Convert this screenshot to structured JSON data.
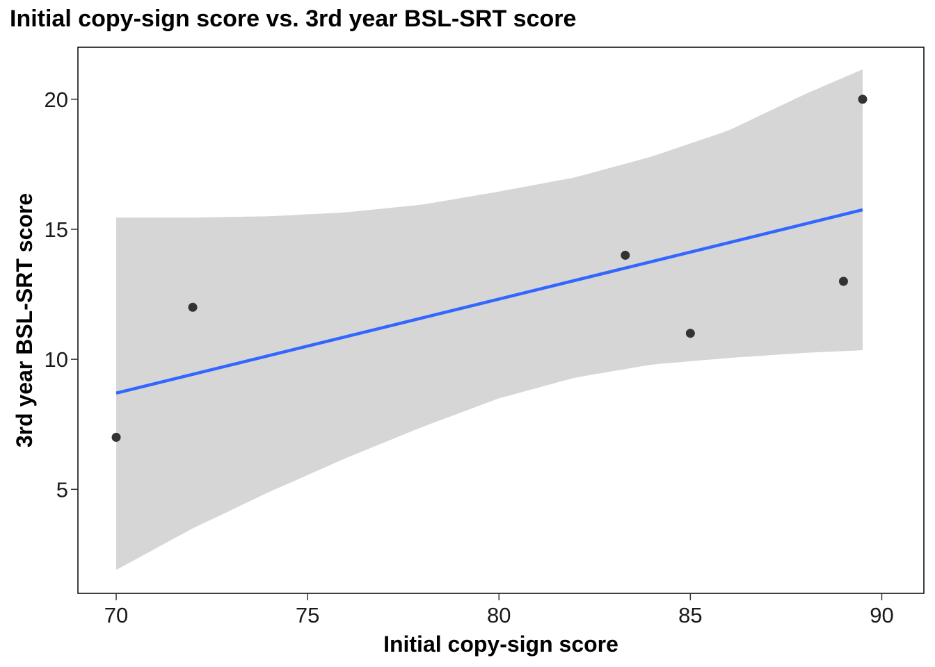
{
  "chart_data": {
    "type": "scatter",
    "title": "Initial copy-sign score vs. 3rd year BSL-SRT score",
    "xlabel": "Initial copy-sign score",
    "ylabel": "3rd year BSL-SRT score",
    "xlim": [
      69,
      91.1
    ],
    "ylim": [
      1.0,
      22.0
    ],
    "xticks": [
      70,
      75,
      80,
      85,
      90
    ],
    "yticks": [
      5,
      10,
      15,
      20
    ],
    "grid": false,
    "points": [
      {
        "x": 70,
        "y": 7
      },
      {
        "x": 72,
        "y": 12
      },
      {
        "x": 83.3,
        "y": 14
      },
      {
        "x": 85,
        "y": 11
      },
      {
        "x": 89,
        "y": 13
      },
      {
        "x": 89.5,
        "y": 20
      }
    ],
    "fit_line": {
      "x": [
        70,
        89.5
      ],
      "y": [
        8.7,
        15.75
      ],
      "color": "#3366ff"
    },
    "confidence_band": {
      "color": "#d6d6d6",
      "x": [
        70,
        72,
        74,
        76,
        78,
        80,
        82,
        84,
        86,
        88,
        89.5
      ],
      "lower": [
        1.9,
        3.5,
        4.9,
        6.2,
        7.4,
        8.5,
        9.3,
        9.8,
        10.05,
        10.25,
        10.35
      ],
      "upper": [
        15.45,
        15.45,
        15.5,
        15.65,
        15.95,
        16.45,
        17.0,
        17.8,
        18.8,
        20.2,
        21.15
      ]
    },
    "point_color": "#333333"
  }
}
